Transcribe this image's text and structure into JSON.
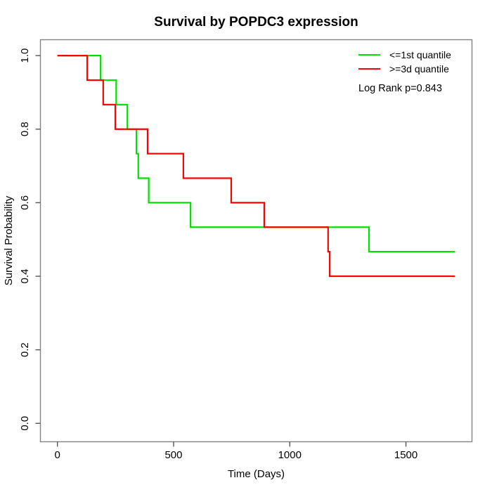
{
  "title": "Survival by POPDC3 expression",
  "axes": {
    "x_label": "Time (Days)",
    "y_label": "Survival Probability"
  },
  "chart_data": {
    "type": "line",
    "subtype": "kaplan-meier-step",
    "title": "Survival by POPDC3 expression",
    "xlabel": "Time (Days)",
    "ylabel": "Survival Probability",
    "xlim": [
      0,
      1785
    ],
    "ylim": [
      0,
      1
    ],
    "x_ticks": [
      0,
      500,
      1000,
      1500
    ],
    "y_ticks": [
      0.0,
      0.2,
      0.4,
      0.6,
      0.8,
      1.0
    ],
    "grid": false,
    "legend_position": "top-right",
    "annotation": "Log Rank p=0.843",
    "end_day": 1710,
    "series": [
      {
        "name": "<=1st quantile",
        "color": "#00e000",
        "start": [
          0,
          1.0
        ],
        "events": [
          [
            186,
            0.9333
          ],
          [
            253,
            0.8667
          ],
          [
            301,
            0.8
          ],
          [
            340,
            0.7333
          ],
          [
            348,
            0.6667
          ],
          [
            393,
            0.6
          ],
          [
            573,
            0.5333
          ],
          [
            1341,
            0.4667
          ]
        ]
      },
      {
        "name": ">=3d quantile",
        "color": "#ff0000",
        "start": [
          0,
          1.0
        ],
        "events": [
          [
            128,
            0.9333
          ],
          [
            197,
            0.8667
          ],
          [
            249,
            0.8
          ],
          [
            388,
            0.7333
          ],
          [
            542,
            0.6667
          ],
          [
            748,
            0.6
          ],
          [
            890,
            0.5333
          ],
          [
            1165,
            0.4667
          ],
          [
            1172,
            0.4
          ]
        ]
      }
    ]
  }
}
